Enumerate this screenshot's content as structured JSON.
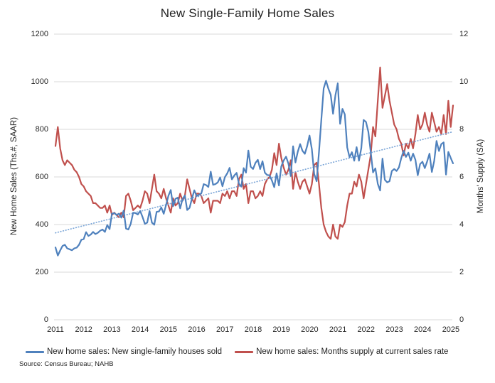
{
  "footer": {
    "source": "Source: Census Bureau; NAHB"
  },
  "colors": {
    "sales_blue": "#4F81BD",
    "supply_red": "#C0504D",
    "trend_blue": "#7DA7D8",
    "grid_gray": "#D9D9D9",
    "text": "#262626"
  },
  "chart_data": {
    "type": "line",
    "title": "New Single-Family Home Sales",
    "frequency": "monthly",
    "x_start": "2011-01",
    "x_end": "2025-02",
    "x_tick_labels": [
      "2011",
      "2012",
      "2013",
      "2014",
      "2015",
      "2016",
      "2017",
      "2018",
      "2019",
      "2020",
      "2021",
      "2022",
      "2023",
      "2024",
      "2025"
    ],
    "grid": "horizontal",
    "legend_position": "bottom",
    "left_axis": {
      "label": "New Home Sales (Ths.#, SAAR)",
      "ticks": [
        0,
        200,
        400,
        600,
        800,
        1000,
        1200
      ],
      "lim": [
        0,
        1200
      ]
    },
    "right_axis": {
      "label": "Months' Supply (SA)",
      "ticks": [
        0,
        2,
        4,
        6,
        8,
        10,
        12
      ],
      "lim": [
        0,
        12
      ]
    },
    "trendline": {
      "axis": "left",
      "style": "dotted",
      "start_value": 365,
      "end_value": 790
    },
    "series": [
      {
        "name": "New home sales: New single-family houses sold",
        "axis": "left",
        "color_key": "sales_blue",
        "values": [
          304,
          270,
          291,
          310,
          315,
          300,
          296,
          292,
          300,
          303,
          315,
          336,
          339,
          368,
          352,
          358,
          369,
          360,
          365,
          374,
          379,
          369,
          398,
          381,
          446,
          448,
          440,
          446,
          429,
          459,
          383,
          379,
          403,
          450,
          448,
          442,
          457,
          432,
          403,
          408,
          457,
          408,
          399,
          453,
          455,
          472,
          445,
          482,
          521,
          545,
          477,
          508,
          513,
          468,
          507,
          522,
          461,
          470,
          508,
          544,
          520,
          525,
          531,
          570,
          566,
          558,
          622,
          567,
          570,
          577,
          598,
          561,
          599,
          615,
          638,
          590,
          606,
          617,
          571,
          559,
          637,
          618,
          711,
          643,
          633,
          659,
          672,
          633,
          666,
          618,
          608,
          607,
          585,
          557,
          615,
          564,
          644,
          669,
          685,
          656,
          604,
          729,
          661,
          706,
          738,
          710,
          697,
          730,
          774,
          716,
          612,
          582,
          704,
          840,
          972,
          1004,
          971,
          945,
          865,
          943,
          993,
          823,
          886,
          863,
          724,
          683,
          704,
          668,
          725,
          668,
          721,
          839,
          831,
          790,
          707,
          619,
          636,
          571,
          543,
          677,
          588,
          577,
          582,
          625,
          633,
          625,
          640,
          679,
          710,
          684,
          702,
          668,
          698,
          672,
          607,
          654,
          664,
          637,
          665,
          698,
          621,
          667,
          751,
          709,
          738,
          745,
          610,
          705,
          680,
          657
        ]
      },
      {
        "name": "New home sales: Months supply at current sales rate",
        "axis": "right",
        "color_key": "supply_red",
        "values": [
          7.3,
          8.1,
          7.2,
          6.7,
          6.5,
          6.7,
          6.6,
          6.5,
          6.3,
          6.2,
          6.0,
          5.7,
          5.6,
          5.4,
          5.3,
          5.2,
          4.9,
          4.9,
          4.8,
          4.7,
          4.7,
          4.8,
          4.5,
          4.8,
          4.4,
          4.5,
          4.4,
          4.3,
          4.5,
          4.3,
          5.2,
          5.3,
          5.0,
          4.6,
          4.7,
          4.8,
          4.7,
          5.0,
          5.4,
          5.3,
          4.9,
          5.5,
          6.1,
          5.4,
          5.3,
          5.1,
          5.5,
          5.1,
          4.8,
          4.5,
          5.1,
          4.8,
          4.9,
          5.3,
          5.0,
          5.2,
          5.9,
          5.5,
          5.1,
          4.9,
          5.3,
          5.3,
          5.2,
          4.9,
          5.0,
          5.1,
          4.5,
          5.0,
          5.0,
          5.0,
          4.9,
          5.3,
          5.2,
          5.4,
          5.1,
          5.4,
          5.4,
          5.2,
          5.9,
          6.1,
          5.5,
          5.7,
          4.9,
          5.4,
          5.4,
          5.1,
          5.2,
          5.4,
          5.2,
          5.7,
          5.9,
          6.0,
          6.3,
          7.0,
          6.5,
          7.4,
          6.8,
          6.4,
          6.1,
          6.3,
          6.7,
          5.5,
          6.2,
          5.8,
          5.5,
          5.8,
          5.9,
          5.6,
          5.3,
          5.7,
          6.5,
          6.6,
          5.7,
          4.7,
          4.0,
          3.7,
          3.5,
          3.4,
          4.0,
          3.5,
          3.4,
          4.0,
          3.9,
          4.1,
          4.8,
          5.3,
          5.3,
          5.8,
          5.6,
          6.1,
          5.8,
          5.1,
          5.7,
          6.3,
          6.9,
          8.1,
          7.7,
          9.2,
          10.6,
          8.9,
          9.4,
          9.9,
          9.2,
          8.7,
          8.2,
          8.0,
          7.6,
          7.4,
          6.9,
          7.4,
          7.2,
          7.6,
          7.2,
          7.8,
          8.6,
          8.0,
          8.2,
          8.7,
          8.2,
          7.9,
          8.7,
          8.3,
          7.9,
          8.1,
          7.8,
          8.6,
          7.8,
          9.2,
          8.1,
          9.0
        ]
      }
    ]
  }
}
